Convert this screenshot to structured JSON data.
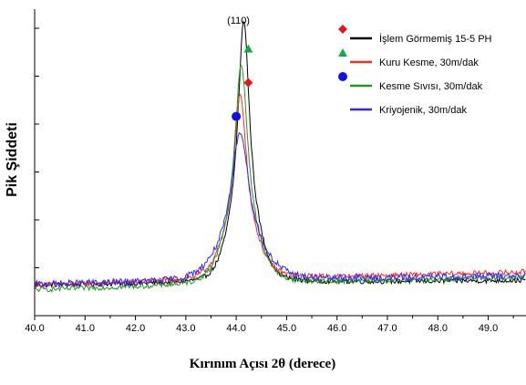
{
  "chart_data": {
    "type": "line",
    "xlabel": "Kırınım Açısı 2θ (derece)",
    "ylabel": "Pik Şiddeti",
    "peak_label": "(110)",
    "xlim": [
      40.0,
      49.75
    ],
    "ylim": [
      0,
      100
    ],
    "x_ticks": [
      "40.0",
      "41.0",
      "42.0",
      "43.0",
      "44.0",
      "45.0",
      "46.0",
      "47.0",
      "48.0",
      "49.0"
    ],
    "y_tick_labels_shown": false,
    "legend_position": "top-right",
    "series": [
      {
        "name": "İşlem Görmemiş 15-5 PH",
        "color": "#000000",
        "marker": "diamond",
        "marker_color": "#e8141b",
        "baseline": 10.0,
        "end": 11.5,
        "peak_x": 44.15,
        "peak_y": 96,
        "width": 0.13,
        "noise": 0.8
      },
      {
        "name": "Kuru Kesme, 30m/dak",
        "color": "#ff2a2a",
        "marker": "triangle",
        "marker_color": "#18a84b",
        "baseline": 10.0,
        "end": 14.2,
        "peak_x": 44.08,
        "peak_y": 70,
        "width": 0.15,
        "noise": 0.9
      },
      {
        "name": "Kesme Sıvısı, 30m/dak",
        "color": "#1f9a1f",
        "marker": "circle",
        "marker_color": "#1010ee",
        "baseline": 8.4,
        "end": 12.5,
        "peak_x": 44.1,
        "peak_y": 80,
        "width": 0.15,
        "noise": 0.8
      },
      {
        "name": "Kriyojenik, 30m/dak",
        "color": "#2a2aff",
        "marker": null,
        "marker_color": null,
        "baseline": 10.2,
        "end": 13.0,
        "peak_x": 44.08,
        "peak_y": 59,
        "width": 0.2,
        "noise": 1.1
      }
    ],
    "peak_markers": [
      {
        "shape": "triangle",
        "color": "#18a84b",
        "x": 44.24,
        "y": 87
      },
      {
        "shape": "diamond",
        "color": "#e8141b",
        "x": 44.24,
        "y": 76
      },
      {
        "shape": "circle",
        "color": "#1010ee",
        "x": 44.0,
        "y": 65
      }
    ]
  }
}
